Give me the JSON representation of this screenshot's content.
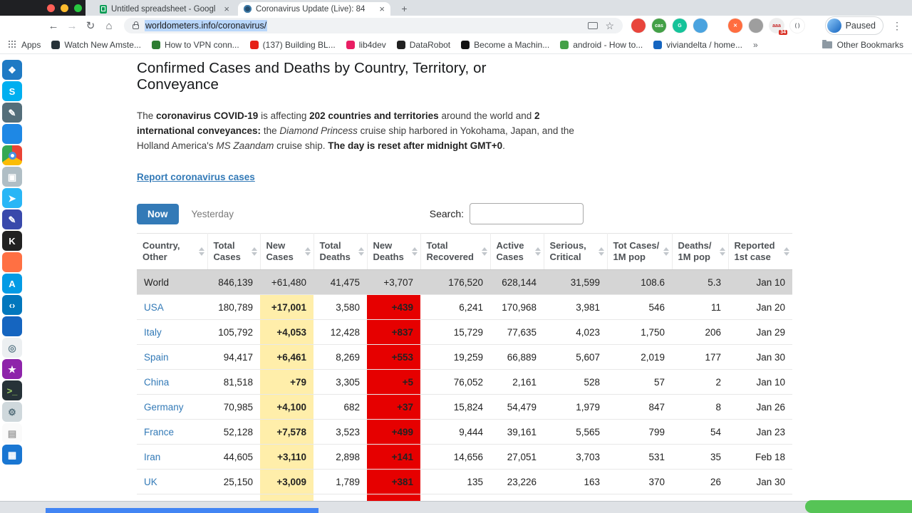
{
  "colors": {
    "new_cases_bg": "#ffeeaa",
    "new_deaths_bg": "#e60000",
    "link_blue": "#337ab7",
    "now_button_bg": "#337ab7",
    "world_row_bg": "#d5d5d5",
    "green_button": "#56c456",
    "progress_blue": "#4285f4"
  },
  "browser": {
    "tabs": [
      {
        "title": "Untitled spreadsheet - Googl"
      },
      {
        "title": "Coronavirus Update (Live): 84"
      }
    ],
    "new_tab_label": "+",
    "url": "worldometers.info/coronavirus/",
    "paused_label": "Paused",
    "menu_icon": "⋮",
    "bookmarks": {
      "apps_label": "Apps",
      "items": [
        {
          "label": "Watch New Amste...",
          "color": "#263238"
        },
        {
          "label": "How to VPN conn...",
          "color": "#2e7d32"
        },
        {
          "label": "(137) Building BL...",
          "color": "#e62117"
        },
        {
          "label": "lib4dev",
          "color": "#e91e63"
        },
        {
          "label": "DataRobot",
          "color": "#212121"
        },
        {
          "label": "Become a Machin...",
          "color": "#111111"
        },
        {
          "label": "android - How to...",
          "color": "#43a047"
        },
        {
          "label": "viviandelta / home...",
          "color": "#1565c0"
        }
      ],
      "overflow": "»",
      "other_label": "Other Bookmarks"
    },
    "extensions": [
      {
        "name": "adblock-extension-icon",
        "color": "#e8453c",
        "glyph": ""
      },
      {
        "name": "cas-extension-icon",
        "color": "#43a047",
        "glyph": "cas"
      },
      {
        "name": "grammarly-extension-icon",
        "color": "#15c39a",
        "glyph": "G"
      },
      {
        "name": "blue-extension-icon",
        "color": "#4aa3df",
        "glyph": ""
      },
      {
        "name": "orange-x-extension-icon",
        "color": "#ff6d3f",
        "glyph": "✕",
        "gap": true
      },
      {
        "name": "gray-extension-icon",
        "color": "#9e9e9e",
        "glyph": ""
      },
      {
        "name": "abp-extension-icon",
        "color": "#eeeeee",
        "glyph": "aaa",
        "fg": "#c62828",
        "badge": "34"
      },
      {
        "name": "brackets-extension-icon",
        "color": "#ffffff",
        "glyph": "( )",
        "fg": "#5f6368"
      }
    ]
  },
  "dock": [
    {
      "name": "dock-icon-launcher",
      "color": "#1f7ac4",
      "glyph": "❖",
      "fg": "#ffffff"
    },
    {
      "name": "dock-icon-skype",
      "color": "#00aff0",
      "glyph": "S",
      "fg": "#ffffff"
    },
    {
      "name": "dock-icon-paint",
      "color": "#546e7a",
      "glyph": "✎",
      "fg": "#ffffff"
    },
    {
      "name": "dock-icon-blue-app",
      "color": "#1e88e5",
      "glyph": "",
      "fg": "#ffffff"
    },
    {
      "name": "dock-icon-chrome",
      "color": "conic-gradient(#ea4335 0deg 120deg, #fbbc05 120deg 235deg, #34a853 235deg 360deg)",
      "glyph": "",
      "center": true
    },
    {
      "name": "dock-icon-cube",
      "color": "#b0bec5",
      "glyph": "▣",
      "fg": "#ffffff"
    },
    {
      "name": "dock-icon-telegram",
      "color": "#29b6f6",
      "glyph": "➤",
      "fg": "#ffffff"
    },
    {
      "name": "dock-icon-pen",
      "color": "#3949ab",
      "glyph": "✎",
      "fg": "#ffffff"
    },
    {
      "name": "dock-icon-ide",
      "color": "#212121",
      "glyph": "K",
      "fg": "#ffffff"
    },
    {
      "name": "dock-icon-orange-app",
      "color": "#ff7043",
      "glyph": "",
      "fg": "#ffffff"
    },
    {
      "name": "dock-icon-appstore",
      "color": "#039be5",
      "glyph": "A",
      "fg": "#ffffff"
    },
    {
      "name": "dock-icon-vscode",
      "color": "#0277bd",
      "glyph": "‹›",
      "fg": "#ffffff"
    },
    {
      "name": "dock-icon-blue-square",
      "color": "#1565c0",
      "glyph": "",
      "fg": "#ffffff"
    },
    {
      "name": "dock-icon-search",
      "color": "#eceff1",
      "glyph": "◎",
      "fg": "#607d8b"
    },
    {
      "name": "dock-icon-star",
      "color": "#8e24aa",
      "glyph": "★",
      "fg": "#ffffff"
    },
    {
      "name": "dock-icon-terminal",
      "color": "#263238",
      "glyph": ">_",
      "fg": "#9ccc65"
    },
    {
      "name": "dock-icon-tools",
      "color": "#cfd8dc",
      "glyph": "⚙",
      "fg": "#546e7a"
    },
    {
      "name": "dock-icon-notes",
      "color": "#fafafa",
      "glyph": "▤",
      "fg": "#9e9e9e"
    },
    {
      "name": "dock-icon-files",
      "color": "#1976d2",
      "glyph": "▦",
      "fg": "#ffffff"
    }
  ],
  "page": {
    "heading": "Confirmed Cases and Deaths by Country, Territory, or Conveyance",
    "intro": {
      "t1": "The ",
      "b1": "coronavirus COVID-19",
      "t2": " is affecting ",
      "b2": "202 countries and territories",
      "t3": " around the world and ",
      "b3": "2 international conveyances:",
      "t4": " the ",
      "i1": "Diamond Princess",
      "t5": " cruise ship harbored in Yokohama, Japan, and the Holland America's ",
      "i2": "MS Zaandam",
      "t6": " cruise ship. ",
      "b4": "The day is reset after midnight GMT+0",
      "t7": "."
    },
    "report_link": "Report coronavirus cases",
    "controls": {
      "now": "Now",
      "yesterday": "Yesterday",
      "search_label": "Search:",
      "search_value": ""
    },
    "table": {
      "headers": [
        "Country,\nOther",
        "Total\nCases",
        "New\nCases",
        "Total\nDeaths",
        "New\nDeaths",
        "Total\nRecovered",
        "Active\nCases",
        "Serious,\nCritical",
        "Tot Cases/\n1M pop",
        "Deaths/\n1M pop",
        "Reported\n1st case"
      ],
      "rows": [
        {
          "type": "world",
          "link": false,
          "cells": [
            "World",
            "846,139",
            "+61,480",
            "41,475",
            "+3,707",
            "176,520",
            "628,144",
            "31,599",
            "108.6",
            "5.3",
            "Jan 10"
          ]
        },
        {
          "link": true,
          "cells": [
            "USA",
            "180,789",
            "+17,001",
            "3,580",
            "+439",
            "6,241",
            "170,968",
            "3,981",
            "546",
            "11",
            "Jan 20"
          ]
        },
        {
          "link": true,
          "cells": [
            "Italy",
            "105,792",
            "+4,053",
            "12,428",
            "+837",
            "15,729",
            "77,635",
            "4,023",
            "1,750",
            "206",
            "Jan 29"
          ]
        },
        {
          "link": true,
          "cells": [
            "Spain",
            "94,417",
            "+6,461",
            "8,269",
            "+553",
            "19,259",
            "66,889",
            "5,607",
            "2,019",
            "177",
            "Jan 30"
          ]
        },
        {
          "link": true,
          "cells": [
            "China",
            "81,518",
            "+79",
            "3,305",
            "+5",
            "76,052",
            "2,161",
            "528",
            "57",
            "2",
            "Jan 10"
          ]
        },
        {
          "link": true,
          "cells": [
            "Germany",
            "70,985",
            "+4,100",
            "682",
            "+37",
            "15,824",
            "54,479",
            "1,979",
            "847",
            "8",
            "Jan 26"
          ]
        },
        {
          "link": true,
          "cells": [
            "France",
            "52,128",
            "+7,578",
            "3,523",
            "+499",
            "9,444",
            "39,161",
            "5,565",
            "799",
            "54",
            "Jan 23"
          ]
        },
        {
          "link": true,
          "cells": [
            "Iran",
            "44,605",
            "+3,110",
            "2,898",
            "+141",
            "14,656",
            "27,051",
            "3,703",
            "531",
            "35",
            "Feb 18"
          ]
        },
        {
          "link": true,
          "cells": [
            "UK",
            "25,150",
            "+3,009",
            "1,789",
            "+381",
            "135",
            "23,226",
            "163",
            "370",
            "26",
            "Jan 30"
          ]
        },
        {
          "type": "partial",
          "link": false,
          "cells": [
            "",
            "",
            "",
            "",
            "",
            "",
            "",
            "",
            "",
            "",
            ""
          ]
        }
      ]
    }
  }
}
